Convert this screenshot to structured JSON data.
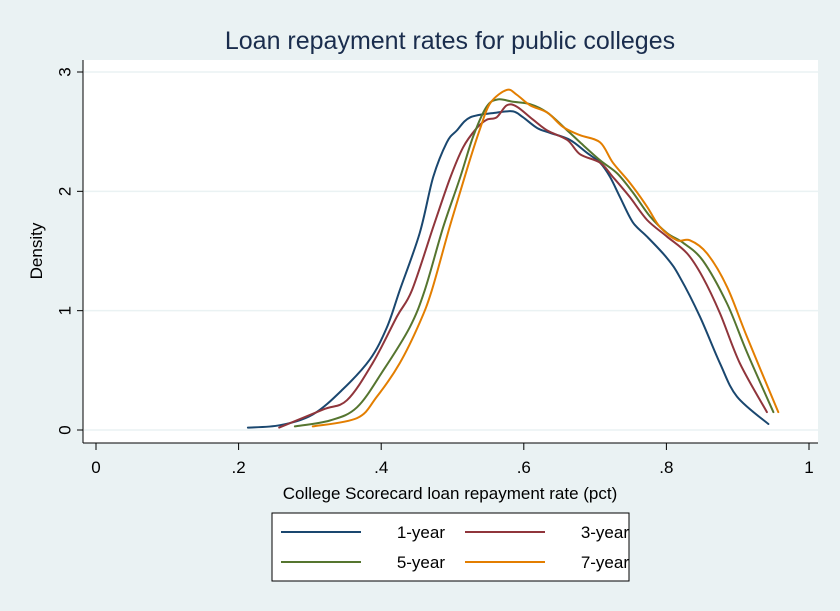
{
  "chart_data": {
    "type": "line",
    "title": "Loan repayment rates for public colleges",
    "xlabel": "College Scorecard loan repayment rate (pct)",
    "ylabel": "Density",
    "xlim": [
      0,
      1
    ],
    "ylim": [
      0,
      3
    ],
    "x_ticks": [
      0,
      0.2,
      0.4,
      0.6,
      0.8,
      1
    ],
    "x_tick_labels": [
      "0",
      ".2",
      ".4",
      ".6",
      ".8",
      "1"
    ],
    "y_ticks": [
      0,
      1,
      2,
      3
    ],
    "y_tick_labels": [
      "0",
      "1",
      "2",
      "3"
    ],
    "grid": "horizontal",
    "legend_position": "bottom",
    "series": [
      {
        "name": "1-year",
        "color": "#1a476f",
        "points": [
          [
            0.213,
            0.02
          ],
          [
            0.258,
            0.04
          ],
          [
            0.304,
            0.13
          ],
          [
            0.346,
            0.34
          ],
          [
            0.384,
            0.59
          ],
          [
            0.408,
            0.86
          ],
          [
            0.426,
            1.17
          ],
          [
            0.454,
            1.65
          ],
          [
            0.473,
            2.12
          ],
          [
            0.492,
            2.41
          ],
          [
            0.506,
            2.51
          ],
          [
            0.525,
            2.62
          ],
          [
            0.562,
            2.66
          ],
          [
            0.585,
            2.67
          ],
          [
            0.599,
            2.62
          ],
          [
            0.619,
            2.53
          ],
          [
            0.637,
            2.49
          ],
          [
            0.665,
            2.43
          ],
          [
            0.689,
            2.32
          ],
          [
            0.707,
            2.24
          ],
          [
            0.721,
            2.12
          ],
          [
            0.735,
            1.95
          ],
          [
            0.753,
            1.74
          ],
          [
            0.773,
            1.62
          ],
          [
            0.801,
            1.44
          ],
          [
            0.819,
            1.28
          ],
          [
            0.847,
            0.95
          ],
          [
            0.875,
            0.56
          ],
          [
            0.899,
            0.28
          ],
          [
            0.943,
            0.05
          ]
        ]
      },
      {
        "name": "3-year",
        "color": "#90353b",
        "points": [
          [
            0.257,
            0.02
          ],
          [
            0.318,
            0.17
          ],
          [
            0.352,
            0.25
          ],
          [
            0.388,
            0.56
          ],
          [
            0.422,
            0.95
          ],
          [
            0.443,
            1.17
          ],
          [
            0.473,
            1.7
          ],
          [
            0.496,
            2.1
          ],
          [
            0.515,
            2.37
          ],
          [
            0.534,
            2.53
          ],
          [
            0.548,
            2.6
          ],
          [
            0.562,
            2.62
          ],
          [
            0.576,
            2.72
          ],
          [
            0.59,
            2.71
          ],
          [
            0.613,
            2.6
          ],
          [
            0.633,
            2.51
          ],
          [
            0.661,
            2.43
          ],
          [
            0.679,
            2.31
          ],
          [
            0.707,
            2.24
          ],
          [
            0.725,
            2.12
          ],
          [
            0.749,
            1.95
          ],
          [
            0.773,
            1.76
          ],
          [
            0.801,
            1.62
          ],
          [
            0.829,
            1.48
          ],
          [
            0.851,
            1.28
          ],
          [
            0.875,
            0.98
          ],
          [
            0.903,
            0.56
          ],
          [
            0.941,
            0.15
          ]
        ]
      },
      {
        "name": "5-year",
        "color": "#55752f",
        "points": [
          [
            0.279,
            0.03
          ],
          [
            0.328,
            0.08
          ],
          [
            0.366,
            0.19
          ],
          [
            0.403,
            0.5
          ],
          [
            0.44,
            0.86
          ],
          [
            0.461,
            1.17
          ],
          [
            0.487,
            1.7
          ],
          [
            0.511,
            2.12
          ],
          [
            0.529,
            2.46
          ],
          [
            0.548,
            2.71
          ],
          [
            0.564,
            2.77
          ],
          [
            0.585,
            2.75
          ],
          [
            0.609,
            2.73
          ],
          [
            0.633,
            2.66
          ],
          [
            0.661,
            2.51
          ],
          [
            0.679,
            2.41
          ],
          [
            0.707,
            2.26
          ],
          [
            0.731,
            2.15
          ],
          [
            0.753,
            1.99
          ],
          [
            0.777,
            1.79
          ],
          [
            0.801,
            1.65
          ],
          [
            0.823,
            1.57
          ],
          [
            0.851,
            1.42
          ],
          [
            0.885,
            1.06
          ],
          [
            0.913,
            0.65
          ],
          [
            0.95,
            0.15
          ]
        ]
      },
      {
        "name": "7-year",
        "color": "#e37e00",
        "points": [
          [
            0.304,
            0.03
          ],
          [
            0.366,
            0.1
          ],
          [
            0.394,
            0.28
          ],
          [
            0.426,
            0.56
          ],
          [
            0.454,
            0.9
          ],
          [
            0.471,
            1.17
          ],
          [
            0.496,
            1.7
          ],
          [
            0.52,
            2.18
          ],
          [
            0.539,
            2.53
          ],
          [
            0.553,
            2.74
          ],
          [
            0.576,
            2.85
          ],
          [
            0.59,
            2.81
          ],
          [
            0.609,
            2.72
          ],
          [
            0.633,
            2.66
          ],
          [
            0.655,
            2.54
          ],
          [
            0.679,
            2.47
          ],
          [
            0.707,
            2.41
          ],
          [
            0.725,
            2.24
          ],
          [
            0.749,
            2.07
          ],
          [
            0.773,
            1.87
          ],
          [
            0.791,
            1.7
          ],
          [
            0.815,
            1.59
          ],
          [
            0.833,
            1.59
          ],
          [
            0.857,
            1.48
          ],
          [
            0.885,
            1.2
          ],
          [
            0.913,
            0.78
          ],
          [
            0.957,
            0.15
          ]
        ]
      }
    ]
  },
  "colors": {
    "background": "#eaf2f3",
    "plot_background": "#ffffff",
    "gridline": "#eaf2f3",
    "title": "#1a2d4d"
  }
}
